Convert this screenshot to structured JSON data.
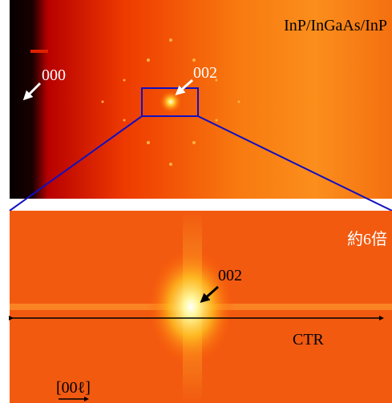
{
  "top_panel": {
    "title": "InP/InGaAs/InP",
    "spot_000": "000",
    "spot_002": "002"
  },
  "bottom_panel": {
    "magnification": "約6倍",
    "spot_002": "002",
    "ctr": "CTR",
    "direction": "[00ℓ]"
  }
}
